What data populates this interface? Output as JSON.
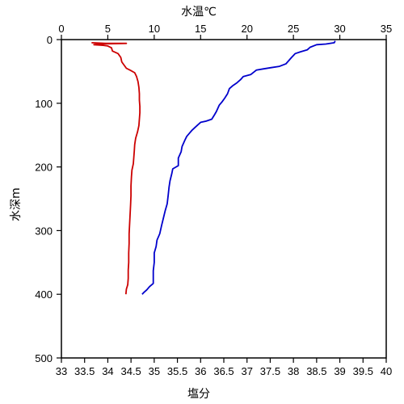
{
  "chart_data": {
    "type": "line",
    "y_axis": {
      "label": "水深m",
      "range": [
        0,
        500
      ],
      "ticks": [
        0,
        100,
        200,
        300,
        400,
        500
      ],
      "inverted": true
    },
    "x_axis_top": {
      "label": "水温℃",
      "range": [
        0,
        35
      ],
      "ticks": [
        0,
        5,
        10,
        15,
        20,
        25,
        30,
        35
      ],
      "color": "#1a2fb0"
    },
    "x_axis_bottom": {
      "label": "塩分",
      "range": [
        33,
        40
      ],
      "ticks": [
        33,
        33.5,
        34,
        34.5,
        35,
        35.5,
        36,
        36.5,
        37,
        37.5,
        38,
        38.5,
        39,
        39.5,
        40
      ],
      "color": "#cc0000"
    },
    "grid": false,
    "series": [
      {
        "color": "#0000cc",
        "axis": "top",
        "points": [
          [
            29.5,
            2
          ],
          [
            29.4,
            5
          ],
          [
            28.5,
            7
          ],
          [
            27.5,
            8
          ],
          [
            26.8,
            12
          ],
          [
            26.5,
            16
          ],
          [
            25.8,
            19
          ],
          [
            25.2,
            22
          ],
          [
            24.8,
            28
          ],
          [
            24.5,
            33
          ],
          [
            24.2,
            38
          ],
          [
            23.5,
            42
          ],
          [
            22.6,
            44
          ],
          [
            21.8,
            46
          ],
          [
            21.0,
            48
          ],
          [
            20.4,
            55
          ],
          [
            19.6,
            58
          ],
          [
            19.3,
            63
          ],
          [
            18.9,
            68
          ],
          [
            18.5,
            72
          ],
          [
            18.1,
            77
          ],
          [
            17.9,
            85
          ],
          [
            17.6,
            92
          ],
          [
            17.3,
            98
          ],
          [
            17.0,
            103
          ],
          [
            16.7,
            113
          ],
          [
            16.5,
            118
          ],
          [
            16.2,
            125
          ],
          [
            15.6,
            128
          ],
          [
            15.0,
            130
          ],
          [
            14.7,
            134
          ],
          [
            14.4,
            138
          ],
          [
            14.1,
            142
          ],
          [
            13.8,
            147
          ],
          [
            13.5,
            152
          ],
          [
            13.3,
            158
          ],
          [
            13.0,
            168
          ],
          [
            12.9,
            176
          ],
          [
            12.6,
            186
          ],
          [
            12.6,
            198
          ],
          [
            12.0,
            203
          ],
          [
            11.9,
            210
          ],
          [
            11.7,
            222
          ],
          [
            11.6,
            232
          ],
          [
            11.5,
            245
          ],
          [
            11.4,
            258
          ],
          [
            11.2,
            268
          ],
          [
            11.0,
            280
          ],
          [
            10.8,
            292
          ],
          [
            10.6,
            305
          ],
          [
            10.3,
            315
          ],
          [
            10.2,
            325
          ],
          [
            10.0,
            335
          ],
          [
            10.0,
            350
          ],
          [
            9.9,
            363
          ],
          [
            9.9,
            375
          ],
          [
            9.9,
            383
          ],
          [
            9.5,
            388
          ],
          [
            9.2,
            393
          ],
          [
            8.9,
            397
          ],
          [
            8.7,
            400
          ]
        ]
      },
      {
        "color": "#cc0000",
        "axis": "bottom",
        "points": [
          [
            33.65,
            5
          ],
          [
            33.95,
            6
          ],
          [
            34.4,
            6
          ],
          [
            33.8,
            7
          ],
          [
            33.7,
            8
          ],
          [
            33.9,
            9
          ],
          [
            34.0,
            10
          ],
          [
            34.08,
            13
          ],
          [
            34.1,
            18
          ],
          [
            34.22,
            22
          ],
          [
            34.28,
            28
          ],
          [
            34.3,
            35
          ],
          [
            34.35,
            40
          ],
          [
            34.4,
            45
          ],
          [
            34.48,
            48
          ],
          [
            34.58,
            52
          ],
          [
            34.62,
            58
          ],
          [
            34.65,
            66
          ],
          [
            34.67,
            75
          ],
          [
            34.68,
            85
          ],
          [
            34.68,
            95
          ],
          [
            34.69,
            105
          ],
          [
            34.69,
            115
          ],
          [
            34.68,
            125
          ],
          [
            34.67,
            135
          ],
          [
            34.64,
            145
          ],
          [
            34.6,
            155
          ],
          [
            34.58,
            165
          ],
          [
            34.57,
            175
          ],
          [
            34.56,
            185
          ],
          [
            34.55,
            195
          ],
          [
            34.52,
            205
          ],
          [
            34.51,
            215
          ],
          [
            34.5,
            230
          ],
          [
            34.5,
            245
          ],
          [
            34.49,
            260
          ],
          [
            34.48,
            275
          ],
          [
            34.47,
            290
          ],
          [
            34.46,
            305
          ],
          [
            34.46,
            320
          ],
          [
            34.45,
            335
          ],
          [
            34.45,
            350
          ],
          [
            34.44,
            362
          ],
          [
            34.44,
            375
          ],
          [
            34.43,
            385
          ],
          [
            34.4,
            392
          ],
          [
            34.39,
            400
          ]
        ]
      }
    ]
  }
}
